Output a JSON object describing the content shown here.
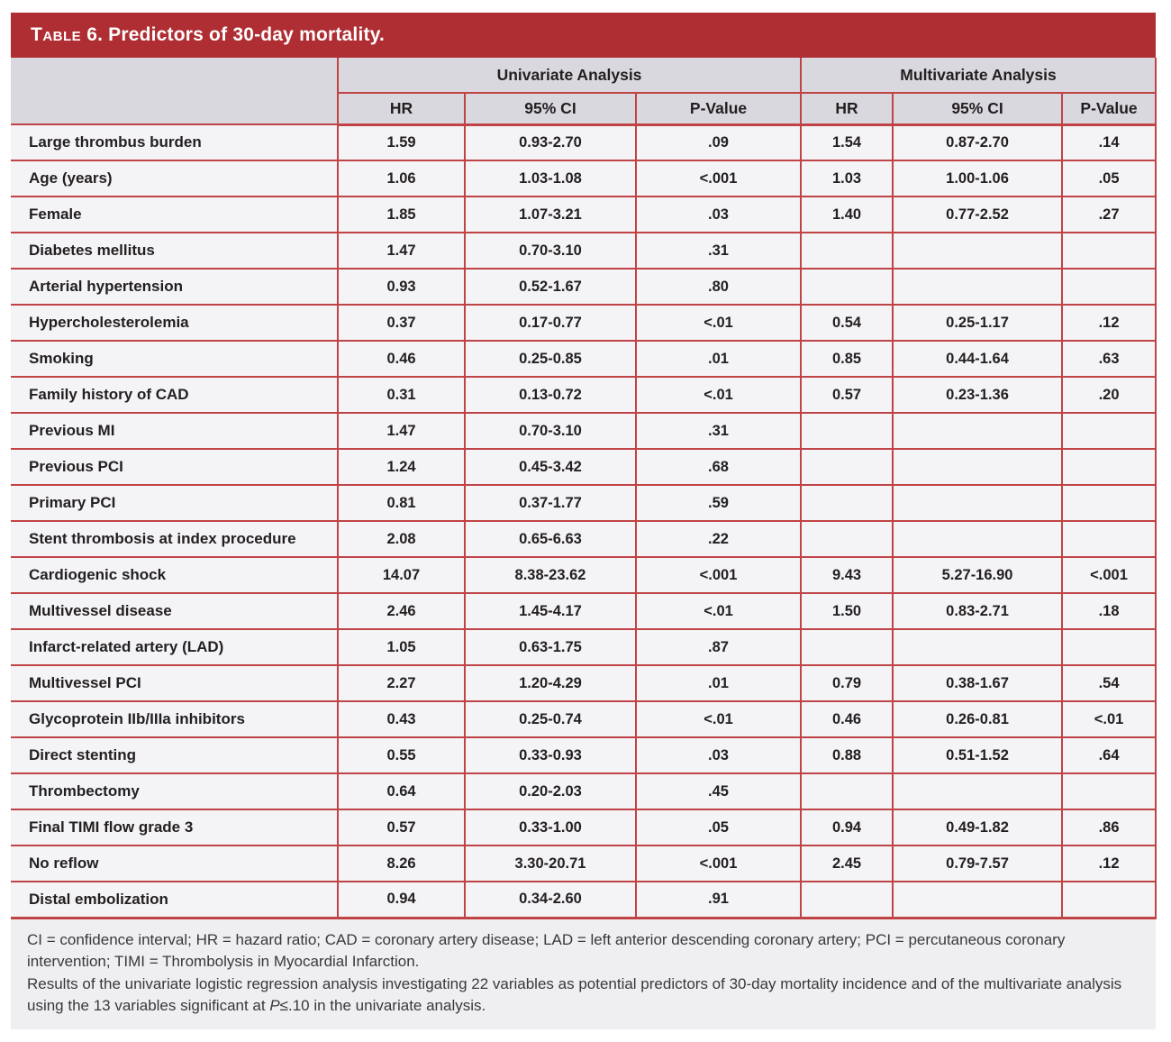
{
  "title": {
    "small_caps_word": "Table",
    "rest": " 6. Predictors of 30-day mortality."
  },
  "colors": {
    "title_bar_red": "#af2e33",
    "grid_line_red": "#c04345",
    "header_background": "#dad8df",
    "row_background": "#f4f3f6",
    "footnote_background": "#efeef1"
  },
  "table": {
    "group_headers": {
      "univariate": "Univariate Analysis",
      "multivariate": "Multivariate Analysis"
    },
    "sub_headers": [
      "HR",
      "95% CI",
      "P-Value",
      "HR",
      "95% CI",
      "P-Value"
    ],
    "rows": [
      {
        "label": "Large thrombus burden",
        "uni": {
          "hr": "1.59",
          "ci": "0.93-2.70",
          "p": ".09"
        },
        "multi": {
          "hr": "1.54",
          "ci": "0.87-2.70",
          "p": ".14"
        }
      },
      {
        "label": "Age (years)",
        "uni": {
          "hr": "1.06",
          "ci": "1.03-1.08",
          "p": "<.001"
        },
        "multi": {
          "hr": "1.03",
          "ci": "1.00-1.06",
          "p": ".05"
        }
      },
      {
        "label": "Female",
        "uni": {
          "hr": "1.85",
          "ci": "1.07-3.21",
          "p": ".03"
        },
        "multi": {
          "hr": "1.40",
          "ci": "0.77-2.52",
          "p": ".27"
        }
      },
      {
        "label": "Diabetes mellitus",
        "uni": {
          "hr": "1.47",
          "ci": "0.70-3.10",
          "p": ".31"
        },
        "multi": {
          "hr": "",
          "ci": "",
          "p": ""
        }
      },
      {
        "label": "Arterial hypertension",
        "uni": {
          "hr": "0.93",
          "ci": "0.52-1.67",
          "p": ".80"
        },
        "multi": {
          "hr": "",
          "ci": "",
          "p": ""
        }
      },
      {
        "label": "Hypercholesterolemia",
        "uni": {
          "hr": "0.37",
          "ci": "0.17-0.77",
          "p": "<.01"
        },
        "multi": {
          "hr": "0.54",
          "ci": "0.25-1.17",
          "p": ".12"
        }
      },
      {
        "label": "Smoking",
        "uni": {
          "hr": "0.46",
          "ci": "0.25-0.85",
          "p": ".01"
        },
        "multi": {
          "hr": "0.85",
          "ci": "0.44-1.64",
          "p": ".63"
        }
      },
      {
        "label": "Family history of CAD",
        "uni": {
          "hr": "0.31",
          "ci": "0.13-0.72",
          "p": "<.01"
        },
        "multi": {
          "hr": "0.57",
          "ci": "0.23-1.36",
          "p": ".20"
        }
      },
      {
        "label": "Previous MI",
        "uni": {
          "hr": "1.47",
          "ci": "0.70-3.10",
          "p": ".31"
        },
        "multi": {
          "hr": "",
          "ci": "",
          "p": ""
        }
      },
      {
        "label": "Previous PCI",
        "uni": {
          "hr": "1.24",
          "ci": "0.45-3.42",
          "p": ".68"
        },
        "multi": {
          "hr": "",
          "ci": "",
          "p": ""
        }
      },
      {
        "label": "Primary PCI",
        "uni": {
          "hr": "0.81",
          "ci": "0.37-1.77",
          "p": ".59"
        },
        "multi": {
          "hr": "",
          "ci": "",
          "p": ""
        }
      },
      {
        "label": "Stent thrombosis at index procedure",
        "uni": {
          "hr": "2.08",
          "ci": "0.65-6.63",
          "p": ".22"
        },
        "multi": {
          "hr": "",
          "ci": "",
          "p": ""
        }
      },
      {
        "label": "Cardiogenic shock",
        "uni": {
          "hr": "14.07",
          "ci": "8.38-23.62",
          "p": "<.001"
        },
        "multi": {
          "hr": "9.43",
          "ci": "5.27-16.90",
          "p": "<.001"
        }
      },
      {
        "label": "Multivessel disease",
        "uni": {
          "hr": "2.46",
          "ci": "1.45-4.17",
          "p": "<.01"
        },
        "multi": {
          "hr": "1.50",
          "ci": "0.83-2.71",
          "p": ".18"
        }
      },
      {
        "label": "Infarct-related artery (LAD)",
        "uni": {
          "hr": "1.05",
          "ci": "0.63-1.75",
          "p": ".87"
        },
        "multi": {
          "hr": "",
          "ci": "",
          "p": ""
        }
      },
      {
        "label": "Multivessel PCI",
        "uni": {
          "hr": "2.27",
          "ci": "1.20-4.29",
          "p": ".01"
        },
        "multi": {
          "hr": "0.79",
          "ci": "0.38-1.67",
          "p": ".54"
        }
      },
      {
        "label": "Glycoprotein IIb/IIIa inhibitors",
        "uni": {
          "hr": "0.43",
          "ci": "0.25-0.74",
          "p": "<.01"
        },
        "multi": {
          "hr": "0.46",
          "ci": "0.26-0.81",
          "p": "<.01"
        }
      },
      {
        "label": "Direct stenting",
        "uni": {
          "hr": "0.55",
          "ci": "0.33-0.93",
          "p": ".03"
        },
        "multi": {
          "hr": "0.88",
          "ci": "0.51-1.52",
          "p": ".64"
        }
      },
      {
        "label": "Thrombectomy",
        "uni": {
          "hr": "0.64",
          "ci": "0.20-2.03",
          "p": ".45"
        },
        "multi": {
          "hr": "",
          "ci": "",
          "p": ""
        }
      },
      {
        "label": "Final TIMI flow grade 3",
        "uni": {
          "hr": "0.57",
          "ci": "0.33-1.00",
          "p": ".05"
        },
        "multi": {
          "hr": "0.94",
          "ci": "0.49-1.82",
          "p": ".86"
        }
      },
      {
        "label": "No reflow",
        "uni": {
          "hr": "8.26",
          "ci": "3.30-20.71",
          "p": "<.001"
        },
        "multi": {
          "hr": "2.45",
          "ci": "0.79-7.57",
          "p": ".12"
        }
      },
      {
        "label": "Distal embolization",
        "uni": {
          "hr": "0.94",
          "ci": "0.34-2.60",
          "p": ".91"
        },
        "multi": {
          "hr": "",
          "ci": "",
          "p": ""
        }
      }
    ]
  },
  "footnotes": {
    "abbreviations": "CI = confidence interval; HR = hazard ratio; CAD = coronary artery disease; LAD = left anterior descending coronary artery; PCI = percutaneous coronary intervention; TIMI = Thrombolysis in Myocardial Infarction.",
    "results_before_p": "Results of the univariate logistic regression analysis investigating 22 variables as potential predictors of 30-day mortality incidence and of the multivariate analysis using the 13 variables significant at ",
    "results_p_italic": "P",
    "results_after_p": "≤.10 in the univariate analysis."
  }
}
